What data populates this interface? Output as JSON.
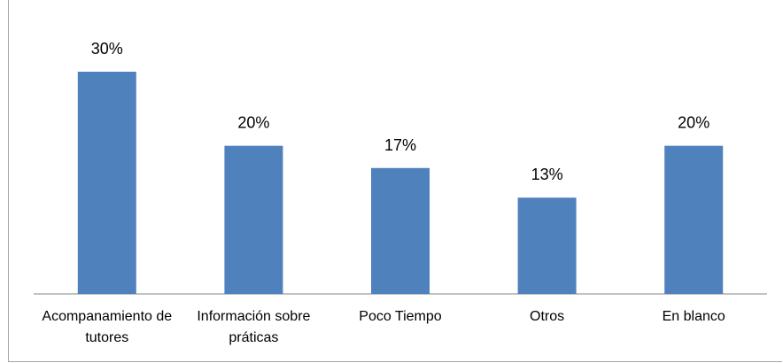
{
  "chart_data": {
    "type": "bar",
    "categories": [
      "Acompanamiento de tutores",
      "Información sobre práticas",
      "Poco Tiempo",
      "Otros",
      "En blanco"
    ],
    "values": [
      30,
      20,
      17,
      13,
      20
    ],
    "value_labels": [
      "30%",
      "20%",
      "17%",
      "13%",
      "20%"
    ],
    "color": "#4f81bd"
  }
}
